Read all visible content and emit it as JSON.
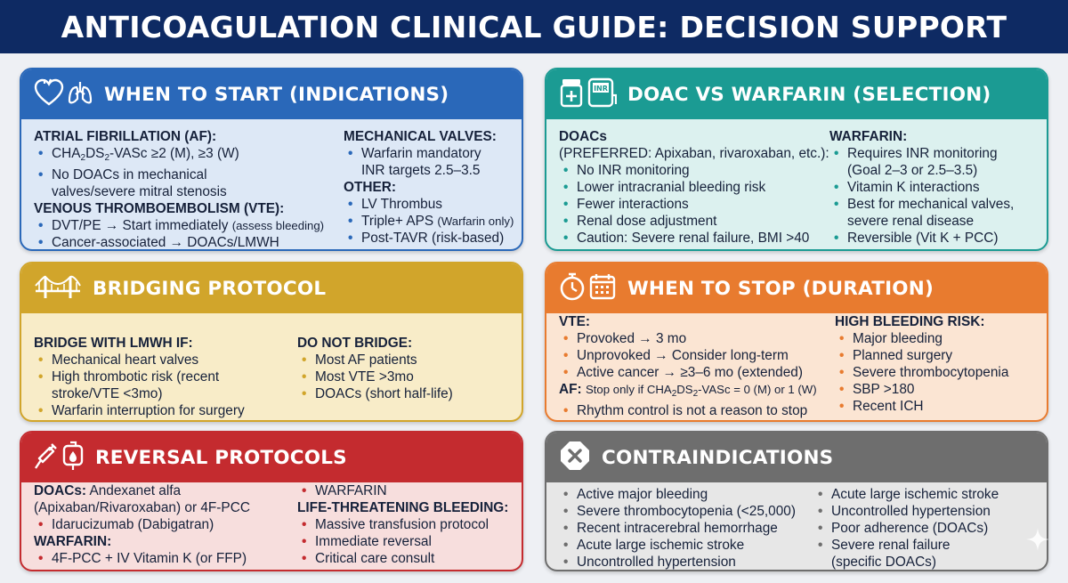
{
  "title": "ANTICOAGULATION CLINICAL GUIDE: DECISION SUPPORT",
  "colors": {
    "title_bar": "#0e2a63",
    "start": "#2a68b9",
    "selection": "#1b9b93",
    "bridging": "#d1a52b",
    "stop": "#e87b2f",
    "reversal": "#c42b2f",
    "contra": "#6e6e6e"
  },
  "start": {
    "heading": "WHEN TO START (INDICATIONS)",
    "icons": [
      "heart-icon",
      "lungs-icon"
    ],
    "af_heading": "ATRIAL FIBRILLATION (AF):",
    "af_items": [
      "CHA₂DS₂-VASc ≥2 (M), ≥3 (W)",
      "No DOACs in mechanical valves/severe mitral stenosis"
    ],
    "vte_heading": "VENOUS THROMBOEMBOLISM (VTE):",
    "vte_item1_main": "DVT/PE → Start immediately",
    "vte_item1_note": "(assess bleeding)",
    "vte_item2": "Cancer-associated → DOACs/LMWH",
    "mv_heading": "MECHANICAL VALVES:",
    "mv_items": [
      "Warfarin mandatory INR targets 2.5–3.5"
    ],
    "other_heading": "OTHER:",
    "other_item1": "LV Thrombus",
    "other_item2_main": "Triple+ APS",
    "other_item2_note": "(Warfarin only)",
    "other_item3": "Post-TAVR (risk-based)"
  },
  "selection": {
    "heading": "DOAC VS WARFARIN (SELECTION)",
    "icons": [
      "pill-bottle-icon",
      "inr-meter-icon"
    ],
    "doac_heading": "DOACs",
    "doac_sub": "(PREFERRED: Apixaban, rivaroxaban, etc.):",
    "doac_items": [
      "No INR monitoring",
      "Lower intracranial bleeding risk",
      "Fewer interactions",
      "Renal dose adjustment",
      "Caution: Severe renal failure, BMI >40"
    ],
    "warfarin_heading": "WARFARIN:",
    "warfarin_items": [
      "Requires INR monitoring (Goal 2–3 or 2.5–3.5)",
      "Vitamin K interactions",
      "Best for mechanical valves, severe renal disease",
      "Reversible (Vit K + PCC)"
    ]
  },
  "bridging": {
    "heading": "BRIDGING PROTOCOL",
    "icons": [
      "bridge-icon"
    ],
    "bridge_heading": "BRIDGE WITH LMWH IF:",
    "bridge_items": [
      "Mechanical heart valves",
      "High thrombotic risk (recent stroke/VTE <3mo)",
      "Warfarin interruption for surgery"
    ],
    "nobridge_heading": "DO NOT BRIDGE:",
    "nobridge_items": [
      "Most AF patients",
      "Most VTE >3mo",
      "DOACs (short half-life)"
    ]
  },
  "stop": {
    "heading": "WHEN TO STOP (DURATION)",
    "icons": [
      "stopwatch-icon",
      "calendar-icon"
    ],
    "vte_heading": "VTE:",
    "vte_items": [
      "Provoked → 3 mo",
      "Unprovoked → Consider long-term",
      "Active cancer → ≥3–6 mo (extended)"
    ],
    "af_label": "AF:",
    "af_note": "Stop only if CHA₂DS₂-VASc = 0 (M) or 1 (W)",
    "af_items": [
      "Rhythm control is not a reason to stop"
    ],
    "risk_heading": "HIGH BLEEDING RISK:",
    "risk_items": [
      "Major bleeding",
      "Planned surgery",
      "Severe thrombocytopenia",
      "SBP >180",
      "Recent ICH"
    ]
  },
  "reversal": {
    "heading": "REVERSAL PROTOCOLS",
    "icons": [
      "syringe-icon",
      "blood-bag-icon"
    ],
    "doac_label": "DOACs:",
    "doac_items": [
      "Andexanet alfa (Apixaban/Rivaroxaban) or 4F-PCC",
      "Idarucizumab (Dabigatran)"
    ],
    "warfarin_heading": "WARFARIN:",
    "warfarin_items": [
      "4F-PCC + IV Vitamin K (or FFP)"
    ],
    "right_items_top": [
      "WARFARIN"
    ],
    "ltb_heading": "LIFE-THREATENING BLEEDING:",
    "ltb_items": [
      "Massive transfusion protocol",
      "Immediate reversal",
      "Critical care consult"
    ]
  },
  "contra": {
    "heading": "CONTRAINDICATIONS",
    "icons": [
      "x-octagon-icon"
    ],
    "left_items": [
      "Active major bleeding",
      "Severe thrombocytopenia (<25,000)",
      "Recent intracerebral hemorrhage",
      "Acute large ischemic stroke",
      "Uncontrolled hypertension"
    ],
    "right_items": [
      "Acute large ischemic stroke",
      "Uncontrolled hypertension",
      "Poor adherence (DOACs)",
      "Severe renal failure (specific DOACs)"
    ]
  }
}
